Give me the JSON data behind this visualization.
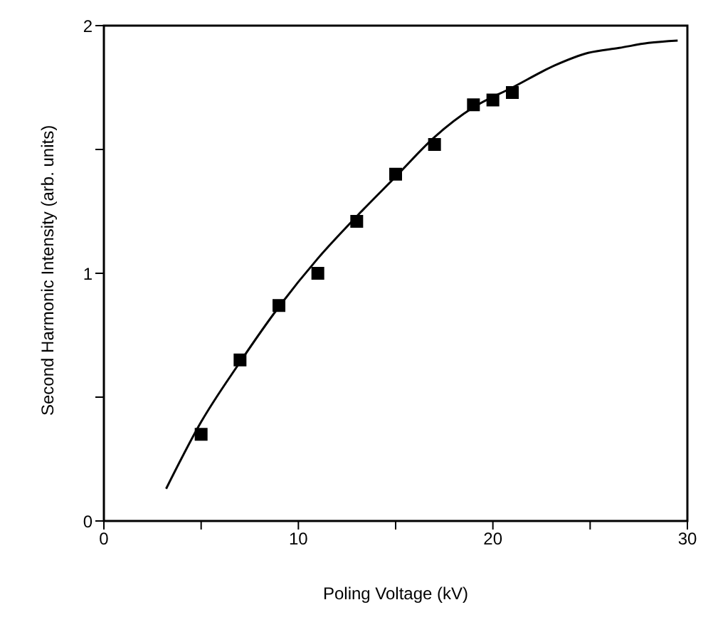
{
  "chart_data": {
    "type": "scatter",
    "xlabel": "Poling Voltage (kV)",
    "ylabel": "Second Harmonic Intensity (arb. units)",
    "xlim": [
      0,
      30
    ],
    "ylim": [
      0,
      2
    ],
    "xticks": [
      0,
      {
        "value": 5,
        "label": null
      },
      10,
      {
        "value": 15,
        "label": null
      },
      20,
      {
        "value": 25,
        "label": null
      },
      30
    ],
    "yticks": [
      0,
      {
        "value": 0.5,
        "label": null
      },
      1,
      {
        "value": 1.5,
        "label": null
      },
      2
    ],
    "grid": false,
    "series": [
      {
        "marker": "square",
        "color": "#000000",
        "x": [
          5,
          7,
          9,
          11,
          13,
          15,
          17,
          19,
          20,
          21
        ],
        "values": [
          0.35,
          0.65,
          0.87,
          1.0,
          1.21,
          1.4,
          1.52,
          1.68,
          1.7,
          1.73
        ]
      },
      {
        "type": "line",
        "marker": "none",
        "line_style": "solid",
        "color": "#000000",
        "x": [
          3.2,
          5,
          6.9,
          9.05,
          11,
          13,
          15,
          17,
          19,
          21,
          23.2,
          24.9,
          26.5,
          28,
          29.5
        ],
        "values": [
          0.13,
          0.4,
          0.63,
          0.87,
          1.06,
          1.23,
          1.39,
          1.55,
          1.67,
          1.75,
          1.84,
          1.89,
          1.91,
          1.93,
          1.94
        ]
      }
    ]
  }
}
